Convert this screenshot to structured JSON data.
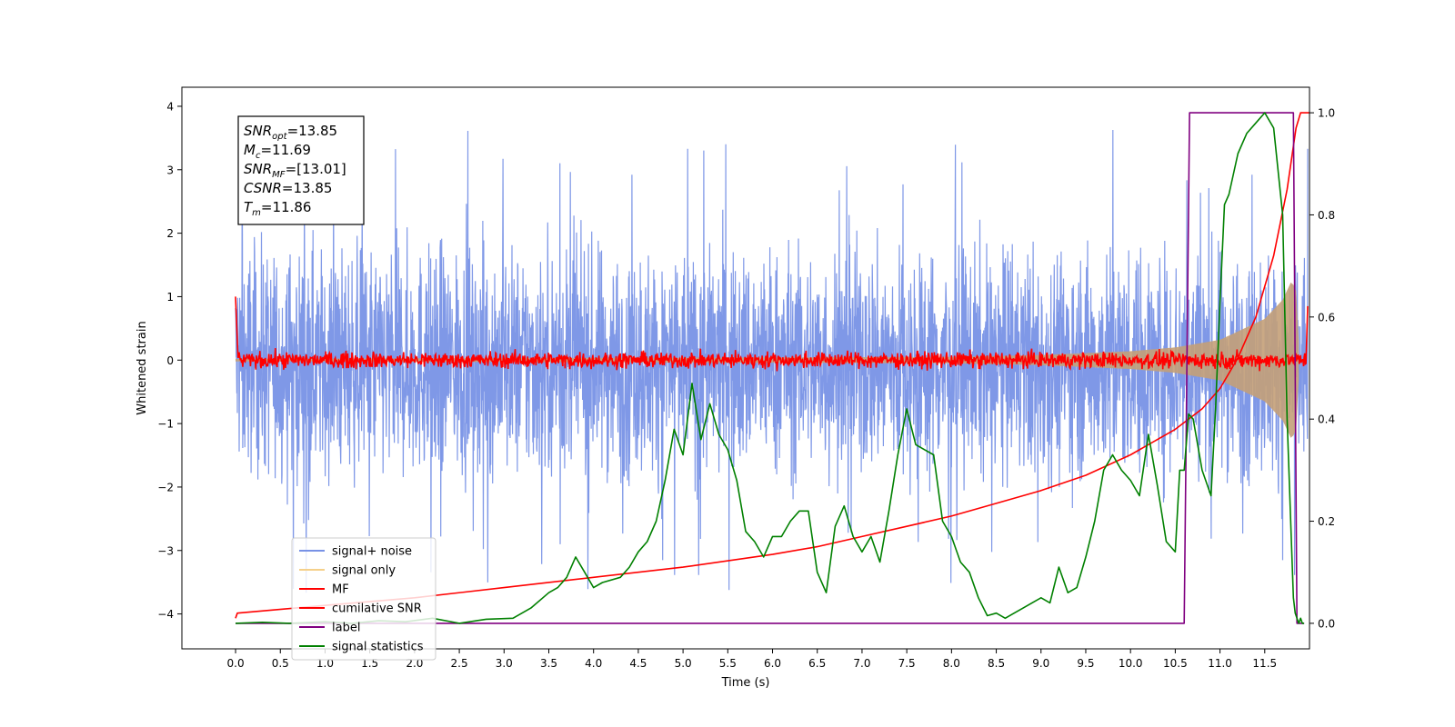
{
  "chart_data": {
    "type": "line",
    "xlabel": "Time (s)",
    "ylabel": "Whitened strain",
    "xlim": [
      -0.6,
      12.0
    ],
    "ylim": [
      -4.55,
      4.3
    ],
    "y2lim": [
      -0.05,
      1.05
    ],
    "x_ticks": [
      0.0,
      0.5,
      1.0,
      1.5,
      2.0,
      2.5,
      3.0,
      3.5,
      4.0,
      4.5,
      5.0,
      5.5,
      6.0,
      6.5,
      7.0,
      7.5,
      8.0,
      8.5,
      9.0,
      9.5,
      10.0,
      10.5,
      11.0,
      11.5
    ],
    "x_tick_labels": [
      "0.0",
      "0.5",
      "1.0",
      "1.5",
      "2.0",
      "2.5",
      "3.0",
      "3.5",
      "4.0",
      "4.5",
      "5.0",
      "5.5",
      "6.0",
      "6.5",
      "7.0",
      "7.5",
      "8.0",
      "8.5",
      "9.0",
      "9.5",
      "10.0",
      "10.5",
      "11.0",
      "11.5"
    ],
    "y_ticks": [
      -4,
      -3,
      -2,
      -1,
      0,
      1,
      2,
      3,
      4
    ],
    "y_tick_labels": [
      "−4",
      "−3",
      "−2",
      "−1",
      "0",
      "1",
      "2",
      "3",
      "4"
    ],
    "y2_ticks": [
      0.0,
      0.2,
      0.4,
      0.6,
      0.8,
      1.0
    ],
    "y2_tick_labels": [
      "0.0",
      "0.2",
      "0.4",
      "0.6",
      "0.8",
      "1.0"
    ],
    "annotation": [
      {
        "sym": "SNR",
        "sub": "opt",
        "val": "=13.85"
      },
      {
        "sym": "M",
        "sub": "c",
        "val": "=11.69"
      },
      {
        "sym": "SNR",
        "sub": "MF",
        "val": "=[13.01]"
      },
      {
        "sym": "CSNR",
        "sub": "",
        "val": "=13.85"
      },
      {
        "sym": "T",
        "sub": "m",
        "val": "=11.86"
      }
    ],
    "legend_position": "lower-left",
    "series": [
      {
        "name": "signal+ noise",
        "axis": "left",
        "color": "#7892e6",
        "kind": "noise",
        "x_range": [
          0.0,
          11.98
        ],
        "center": -0.05,
        "envelope": 1.4,
        "peak_extremes": [
          3.9,
          -4.1
        ]
      },
      {
        "name": "signal only",
        "axis": "left",
        "color": "#c4a078",
        "legend_color": "#f5d08a",
        "kind": "chirp",
        "x_range": [
          0.0,
          11.98
        ],
        "envelope": {
          "t": [
            0,
            8.0,
            9.0,
            10.0,
            10.5,
            11.0,
            11.5,
            11.7,
            11.8,
            11.85,
            11.88
          ],
          "a": [
            0.02,
            0.05,
            0.08,
            0.14,
            0.2,
            0.32,
            0.65,
            0.95,
            1.25,
            1.1,
            0.3
          ]
        }
      },
      {
        "name": "MF",
        "axis": "left",
        "color": "#ff0000",
        "kind": "mf",
        "x_range": [
          0.0,
          11.98
        ],
        "start_value": 1.0,
        "end_value": 0.85,
        "noise_amp": 0.08
      },
      {
        "name": "cumilative SNR",
        "axis": "right",
        "color": "#ff0000",
        "x": [
          0.0,
          0.02,
          1.0,
          2.0,
          3.0,
          4.0,
          5.0,
          6.0,
          6.5,
          7.0,
          7.5,
          8.0,
          8.5,
          9.0,
          9.5,
          10.0,
          10.5,
          10.8,
          11.0,
          11.2,
          11.4,
          11.6,
          11.75,
          11.85,
          11.9,
          12.0
        ],
        "y": [
          0.01,
          0.02,
          0.035,
          0.05,
          0.07,
          0.09,
          0.11,
          0.135,
          0.15,
          0.17,
          0.19,
          0.21,
          0.235,
          0.26,
          0.29,
          0.33,
          0.38,
          0.42,
          0.46,
          0.52,
          0.6,
          0.72,
          0.85,
          0.97,
          1.0,
          1.0
        ]
      },
      {
        "name": "label",
        "axis": "right",
        "color": "#800080",
        "x": [
          0.0,
          10.6,
          10.66,
          11.82,
          11.86,
          11.94
        ],
        "y": [
          0.0,
          0.0,
          1.0,
          1.0,
          0.0,
          0.0
        ]
      },
      {
        "name": "signal statistics",
        "axis": "right",
        "color": "#008000",
        "x": [
          0.0,
          0.3,
          0.6,
          1.0,
          1.3,
          1.6,
          1.9,
          2.2,
          2.5,
          2.8,
          3.1,
          3.3,
          3.5,
          3.6,
          3.7,
          3.8,
          3.9,
          4.0,
          4.1,
          4.3,
          4.4,
          4.5,
          4.6,
          4.7,
          4.8,
          4.9,
          5.0,
          5.1,
          5.2,
          5.3,
          5.4,
          5.5,
          5.6,
          5.7,
          5.8,
          5.9,
          6.0,
          6.1,
          6.2,
          6.3,
          6.4,
          6.5,
          6.6,
          6.7,
          6.8,
          6.9,
          7.0,
          7.1,
          7.2,
          7.3,
          7.4,
          7.5,
          7.6,
          7.7,
          7.8,
          7.9,
          8.0,
          8.1,
          8.2,
          8.3,
          8.4,
          8.5,
          8.6,
          8.7,
          8.8,
          8.9,
          9.0,
          9.1,
          9.2,
          9.3,
          9.4,
          9.5,
          9.6,
          9.7,
          9.8,
          9.9,
          10.0,
          10.1,
          10.2,
          10.3,
          10.4,
          10.5,
          10.55,
          10.6,
          10.65,
          10.7,
          10.8,
          10.9,
          10.95,
          11.0,
          11.05,
          11.1,
          11.2,
          11.3,
          11.4,
          11.5,
          11.6,
          11.7,
          11.75,
          11.8,
          11.82,
          11.84,
          11.86,
          11.88,
          11.9,
          11.92,
          11.94
        ],
        "y": [
          0.0,
          0.002,
          0.0,
          0.003,
          0.0,
          0.005,
          0.003,
          0.01,
          0.0,
          0.008,
          0.01,
          0.03,
          0.06,
          0.07,
          0.09,
          0.13,
          0.1,
          0.07,
          0.08,
          0.09,
          0.11,
          0.14,
          0.16,
          0.2,
          0.28,
          0.38,
          0.33,
          0.47,
          0.36,
          0.43,
          0.37,
          0.34,
          0.28,
          0.18,
          0.16,
          0.13,
          0.17,
          0.17,
          0.2,
          0.22,
          0.22,
          0.1,
          0.06,
          0.19,
          0.23,
          0.17,
          0.14,
          0.17,
          0.12,
          0.22,
          0.33,
          0.42,
          0.35,
          0.34,
          0.33,
          0.2,
          0.17,
          0.12,
          0.1,
          0.05,
          0.015,
          0.02,
          0.01,
          0.02,
          0.03,
          0.04,
          0.05,
          0.04,
          0.11,
          0.06,
          0.07,
          0.13,
          0.2,
          0.3,
          0.33,
          0.3,
          0.28,
          0.25,
          0.37,
          0.27,
          0.16,
          0.14,
          0.3,
          0.3,
          0.41,
          0.4,
          0.3,
          0.25,
          0.42,
          0.63,
          0.82,
          0.84,
          0.92,
          0.96,
          0.98,
          1.0,
          0.97,
          0.8,
          0.4,
          0.15,
          0.05,
          0.02,
          0.01,
          0.0,
          0.01,
          0.0,
          0.0
        ]
      }
    ]
  }
}
